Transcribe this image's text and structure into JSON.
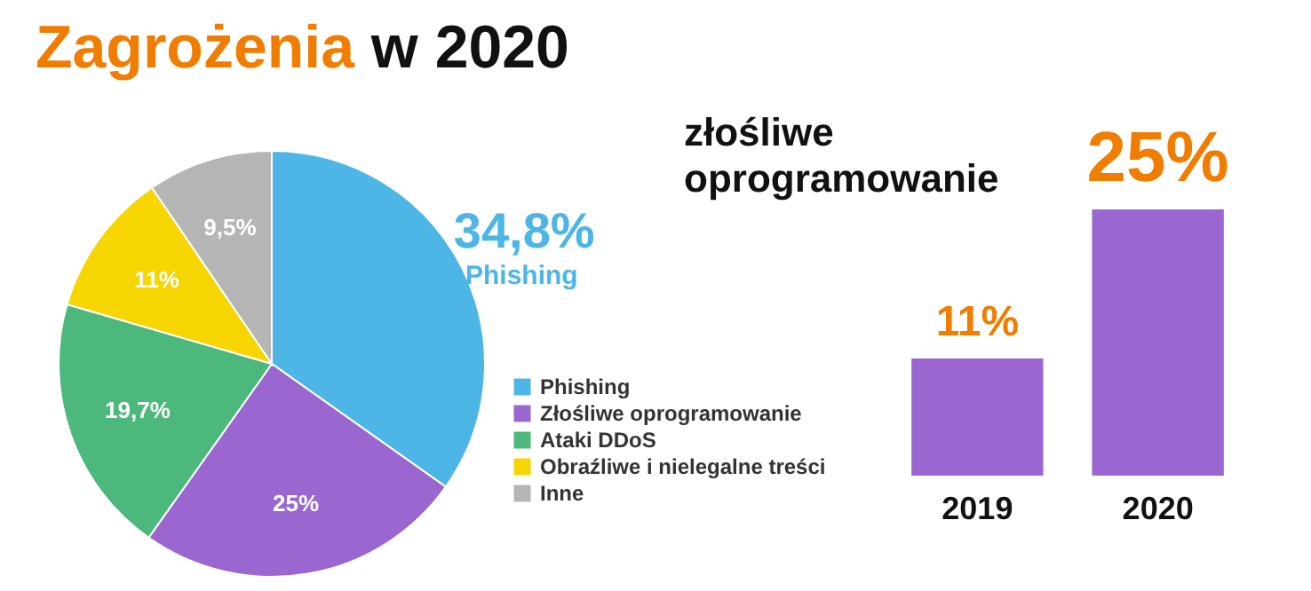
{
  "chart_data": [
    {
      "type": "pie",
      "title": "Zagrożenia w 2020",
      "categories": [
        "Phishing",
        "Złośliwe oprogramowanie",
        "Ataki DDoS",
        "Obraźliwe i nielegalne treści",
        "Inne"
      ],
      "values": [
        34.8,
        25,
        19.7,
        11,
        9.5
      ],
      "colors": [
        "#4db6e6",
        "#9a66cf",
        "#4cb87b",
        "#f6d500",
        "#b5b5b5"
      ],
      "value_labels": [
        "34,8%",
        "25%",
        "19,7%",
        "11%",
        "9,5%"
      ],
      "annotations": [
        "Phishing"
      ],
      "legend": "right"
    },
    {
      "type": "bar",
      "title": "złośliwe oprogramowanie",
      "categories": [
        "2019",
        "2020"
      ],
      "values": [
        11,
        25
      ],
      "colors": [
        "#9a66cf",
        "#9a66cf"
      ],
      "value_labels": [
        "11%",
        "25%"
      ]
    }
  ]
}
